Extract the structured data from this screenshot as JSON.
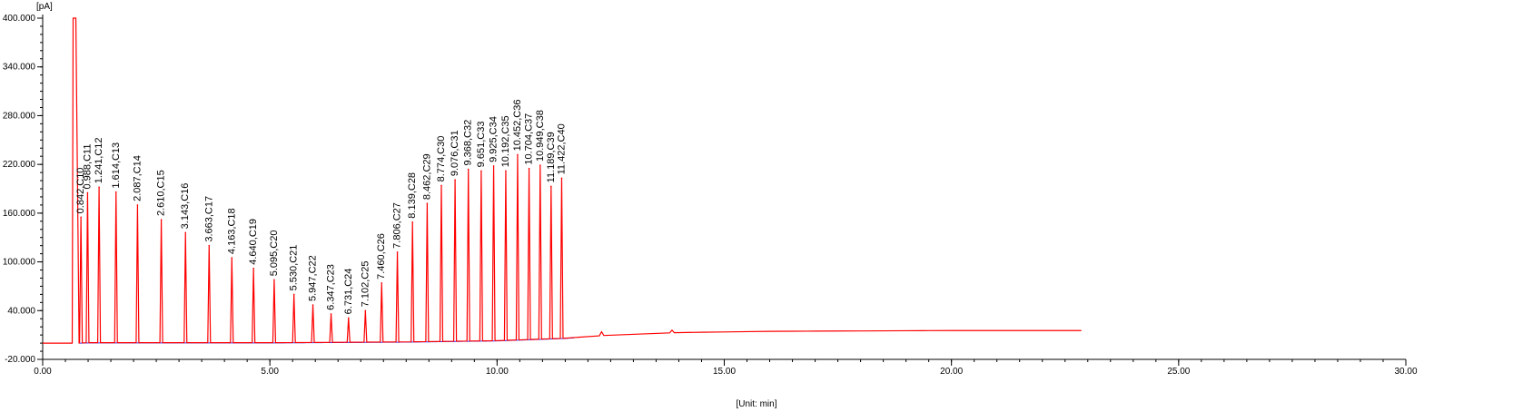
{
  "chart_data": {
    "type": "line",
    "title": "",
    "ylabel": "[pA]",
    "xlabel": "[Unit: min]",
    "xlim": [
      0,
      30
    ],
    "ylim": [
      -20,
      400
    ],
    "grid": false,
    "legend": "none",
    "x_ticks": [
      {
        "value": 0,
        "label": "0.00"
      },
      {
        "value": 5,
        "label": "5.00"
      },
      {
        "value": 10,
        "label": "10.00"
      },
      {
        "value": 15,
        "label": "15.00"
      },
      {
        "value": 20,
        "label": "20.00"
      },
      {
        "value": 25,
        "label": "25.00"
      },
      {
        "value": 30,
        "label": "30.00"
      }
    ],
    "y_ticks": [
      {
        "value": -20,
        "label": "-20.000"
      },
      {
        "value": 40,
        "label": "40.000"
      },
      {
        "value": 100,
        "label": "100.000"
      },
      {
        "value": 160,
        "label": "160.000"
      },
      {
        "value": 220,
        "label": "220.000"
      },
      {
        "value": 280,
        "label": "280.000"
      },
      {
        "value": 340,
        "label": "340.000"
      },
      {
        "value": 400,
        "label": "400.000"
      }
    ],
    "colors": {
      "signal": "#ff0000",
      "baseline": "#3333ff",
      "axis": "#000000"
    },
    "solvent_peak": {
      "x_start": 0.65,
      "x_end": 0.75,
      "height": 400
    },
    "signal_end_x": 22.86,
    "baseline_points": [
      {
        "x": 0,
        "y": 0
      },
      {
        "x": 0.65,
        "y": 0
      },
      {
        "x": 1.0,
        "y": 0.5
      },
      {
        "x": 5.0,
        "y": 0.5
      },
      {
        "x": 8.0,
        "y": 1.5
      },
      {
        "x": 10.0,
        "y": 3
      },
      {
        "x": 11.5,
        "y": 6
      },
      {
        "x": 12.5,
        "y": 10
      },
      {
        "x": 14.0,
        "y": 13
      },
      {
        "x": 16.0,
        "y": 14.5
      },
      {
        "x": 18.0,
        "y": 15
      },
      {
        "x": 20.0,
        "y": 15.5
      },
      {
        "x": 22.86,
        "y": 15.5
      }
    ],
    "minor_peaks": [
      {
        "x": 12.3,
        "y": 14
      },
      {
        "x": 13.85,
        "y": 16
      }
    ],
    "peaks": [
      {
        "rt": 0.842,
        "label": "0.842,C10",
        "height": 155
      },
      {
        "rt": 0.988,
        "label": "0.988,C11",
        "height": 185
      },
      {
        "rt": 1.241,
        "label": "1.241,C12",
        "height": 192
      },
      {
        "rt": 1.614,
        "label": "1.614,C13",
        "height": 186
      },
      {
        "rt": 2.087,
        "label": "2.087,C14",
        "height": 170
      },
      {
        "rt": 2.61,
        "label": "2.610,C15",
        "height": 152
      },
      {
        "rt": 3.143,
        "label": "3.143,C16",
        "height": 136
      },
      {
        "rt": 3.663,
        "label": "3.663,C17",
        "height": 120
      },
      {
        "rt": 4.163,
        "label": "4.163,C18",
        "height": 105
      },
      {
        "rt": 4.64,
        "label": "4.640,C19",
        "height": 92
      },
      {
        "rt": 5.095,
        "label": "5.095,C20",
        "height": 78
      },
      {
        "rt": 5.53,
        "label": "5.530,C21",
        "height": 60
      },
      {
        "rt": 5.947,
        "label": "5.947,C22",
        "height": 47
      },
      {
        "rt": 6.347,
        "label": "6.347,C23",
        "height": 36
      },
      {
        "rt": 6.731,
        "label": "6.731,C24",
        "height": 31
      },
      {
        "rt": 7.102,
        "label": "7.102,C25",
        "height": 40
      },
      {
        "rt": 7.46,
        "label": "7.460,C26",
        "height": 74
      },
      {
        "rt": 7.806,
        "label": "7.806,C27",
        "height": 112
      },
      {
        "rt": 8.139,
        "label": "8.139,C28",
        "height": 149
      },
      {
        "rt": 8.462,
        "label": "8.462,C29",
        "height": 172
      },
      {
        "rt": 8.774,
        "label": "8.774,C30",
        "height": 194
      },
      {
        "rt": 9.076,
        "label": "9.076,C31",
        "height": 201
      },
      {
        "rt": 9.368,
        "label": "9.368,C32",
        "height": 214
      },
      {
        "rt": 9.651,
        "label": "9.651,C33",
        "height": 212
      },
      {
        "rt": 9.925,
        "label": "9.925,C34",
        "height": 218
      },
      {
        "rt": 10.192,
        "label": "10.192,C35",
        "height": 212
      },
      {
        "rt": 10.452,
        "label": "10.452,C36",
        "height": 232
      },
      {
        "rt": 10.704,
        "label": "10.704,C37",
        "height": 215
      },
      {
        "rt": 10.949,
        "label": "10.949,C38",
        "height": 219
      },
      {
        "rt": 11.189,
        "label": "11.189,C39",
        "height": 193
      },
      {
        "rt": 11.422,
        "label": "11.422,C40",
        "height": 203
      }
    ]
  }
}
